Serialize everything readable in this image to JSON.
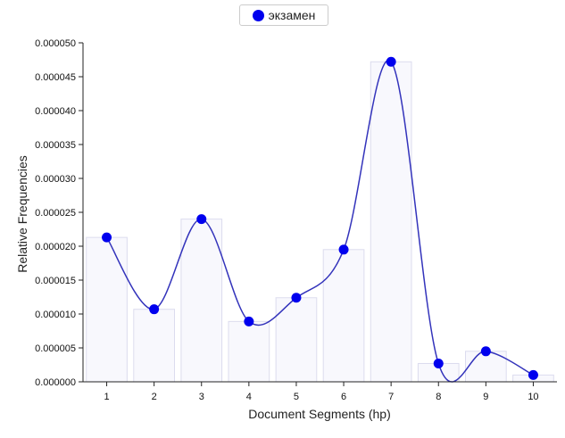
{
  "chart_data": {
    "type": "bar",
    "legend": {
      "label": "экзамен",
      "position": "top-center",
      "color": "#0000ee"
    },
    "xlabel": "Document Segments (hp)",
    "ylabel": "Relative Frequencies",
    "categories": [
      "1",
      "2",
      "3",
      "4",
      "5",
      "6",
      "7",
      "8",
      "9",
      "10"
    ],
    "series": [
      {
        "name": "экзамен",
        "values": [
          2.13e-05,
          1.07e-05,
          2.4e-05,
          8.9e-06,
          1.24e-05,
          1.95e-05,
          4.72e-05,
          2.7e-06,
          4.5e-06,
          1e-06
        ]
      }
    ],
    "ylim": [
      0,
      5e-05
    ],
    "yticks": [
      "0.000000",
      "0.000005",
      "0.000010",
      "0.000015",
      "0.000020",
      "0.000025",
      "0.000030",
      "0.000035",
      "0.000040",
      "0.000045",
      "0.000050"
    ],
    "overlay": "smoothed line with point markers",
    "bar_color": "#f8f8fd",
    "line_color": "#3333bb"
  }
}
